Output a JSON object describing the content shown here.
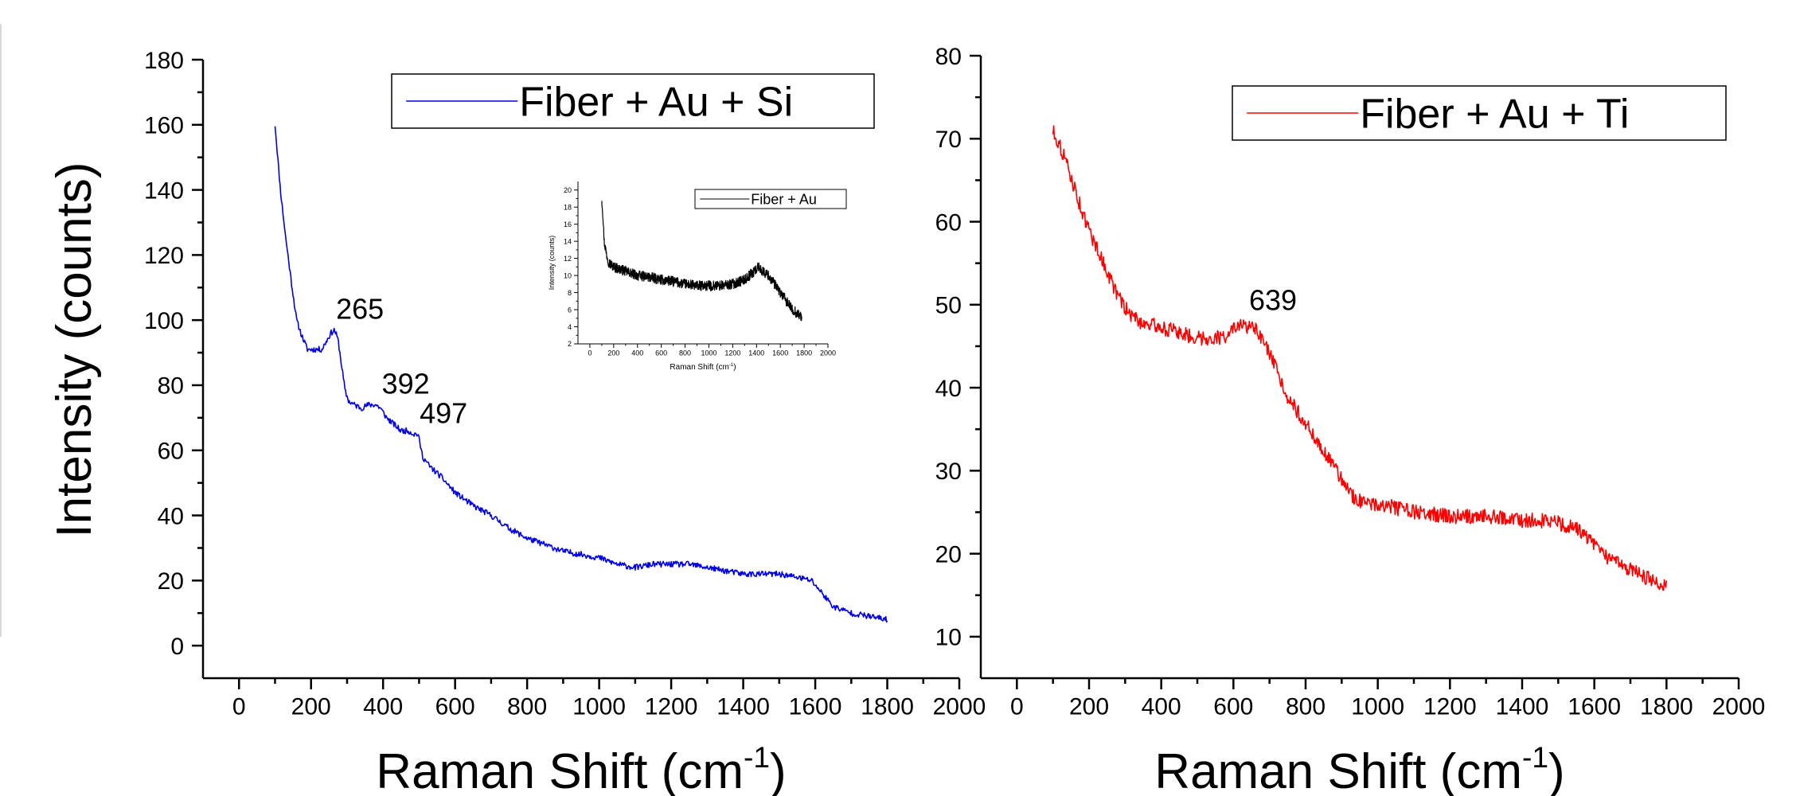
{
  "chart_data": [
    {
      "type": "line",
      "xlabel": "Raman Shift (cm",
      "xlabel_sup": "-1",
      "xlabel_end": ")",
      "ylabel": "Intensity (counts)",
      "xlim": [
        -100,
        2000
      ],
      "ylim": [
        -10,
        180
      ],
      "xticks": [
        0,
        200,
        400,
        600,
        800,
        1000,
        1200,
        1400,
        1600,
        1800,
        2000
      ],
      "yticks": [
        0,
        20,
        40,
        60,
        80,
        100,
        120,
        140,
        160,
        180
      ],
      "legend": "top-right",
      "series": [
        {
          "name": "Fiber + Au + Si",
          "color": "#0000e6",
          "points": [
            [
              100,
              160
            ],
            [
              115,
              140
            ],
            [
              130,
              125
            ],
            [
              145,
              112
            ],
            [
              160,
              100
            ],
            [
              175,
              95
            ],
            [
              190,
              91
            ],
            [
              210,
              91
            ],
            [
              230,
              91
            ],
            [
              245,
              94
            ],
            [
              255,
              96
            ],
            [
              265,
              97
            ],
            [
              275,
              94
            ],
            [
              285,
              86
            ],
            [
              295,
              78
            ],
            [
              305,
              75
            ],
            [
              320,
              74
            ],
            [
              340,
              73
            ],
            [
              360,
              74
            ],
            [
              380,
              74
            ],
            [
              392,
              73
            ],
            [
              410,
              70
            ],
            [
              430,
              68
            ],
            [
              450,
              66
            ],
            [
              470,
              66
            ],
            [
              485,
              65
            ],
            [
              497,
              65
            ],
            [
              510,
              58
            ],
            [
              530,
              55
            ],
            [
              560,
              52
            ],
            [
              600,
              47
            ],
            [
              650,
              43
            ],
            [
              700,
              40
            ],
            [
              750,
              36
            ],
            [
              800,
              33
            ],
            [
              850,
              31
            ],
            [
              900,
              29
            ],
            [
              950,
              28
            ],
            [
              1000,
              27
            ],
            [
              1050,
              25
            ],
            [
              1100,
              24
            ],
            [
              1150,
              25
            ],
            [
              1200,
              25
            ],
            [
              1250,
              25
            ],
            [
              1300,
              24
            ],
            [
              1350,
              23
            ],
            [
              1400,
              22
            ],
            [
              1450,
              22
            ],
            [
              1500,
              22
            ],
            [
              1550,
              21
            ],
            [
              1590,
              20
            ],
            [
              1620,
              16
            ],
            [
              1650,
              12
            ],
            [
              1700,
              10
            ],
            [
              1750,
              9
            ],
            [
              1800,
              8
            ]
          ],
          "noise": 0.9
        }
      ],
      "annotations": [
        {
          "label": "265",
          "x": 265,
          "y": 97
        },
        {
          "label": "392",
          "x": 392,
          "y": 74
        },
        {
          "label": "497",
          "x": 497,
          "y": 65
        }
      ],
      "inset": {
        "xlabel": "Raman Shift (cm",
        "xlabel_sup": "-1",
        "xlabel_end": ")",
        "ylabel": "Intensity (counts)",
        "xlim": [
          -100,
          2000
        ],
        "ylim": [
          2,
          21
        ],
        "xticks": [
          0,
          200,
          400,
          600,
          800,
          1000,
          1200,
          1400,
          1600,
          1800,
          2000
        ],
        "yticks": [
          2,
          4,
          6,
          8,
          10,
          12,
          14,
          16,
          18,
          20
        ],
        "series": [
          {
            "name": "Fiber + Au",
            "color": "#000000",
            "points": [
              [
                100,
                19
              ],
              [
                110,
                17
              ],
              [
                120,
                14
              ],
              [
                140,
                12.5
              ],
              [
                160,
                11.5
              ],
              [
                200,
                11
              ],
              [
                300,
                10.5
              ],
              [
                400,
                10
              ],
              [
                500,
                9.8
              ],
              [
                600,
                9.5
              ],
              [
                700,
                9.3
              ],
              [
                800,
                9
              ],
              [
                900,
                8.8
              ],
              [
                1000,
                8.8
              ],
              [
                1100,
                8.8
              ],
              [
                1200,
                9
              ],
              [
                1300,
                9.5
              ],
              [
                1380,
                10.5
              ],
              [
                1420,
                11
              ],
              [
                1450,
                10.5
              ],
              [
                1500,
                10
              ],
              [
                1550,
                9
              ],
              [
                1600,
                8
              ],
              [
                1650,
                7
              ],
              [
                1700,
                6
              ],
              [
                1750,
                5.5
              ],
              [
                1780,
                5
              ]
            ],
            "noise": 0.6
          }
        ]
      }
    },
    {
      "type": "line",
      "xlabel": "Raman Shift (cm",
      "xlabel_sup": "-1",
      "xlabel_end": ")",
      "xlim": [
        -100,
        2000
      ],
      "ylim": [
        5,
        80
      ],
      "xticks": [
        0,
        200,
        400,
        600,
        800,
        1000,
        1200,
        1400,
        1600,
        1800,
        2000
      ],
      "yticks": [
        10,
        20,
        30,
        40,
        50,
        60,
        70,
        80
      ],
      "legend": "top-right",
      "series": [
        {
          "name": "Fiber + Au + Ti",
          "color": "#ff0000",
          "points": [
            [
              100,
              71
            ],
            [
              130,
              68
            ],
            [
              160,
              64
            ],
            [
              190,
              60
            ],
            [
              220,
              57
            ],
            [
              250,
              54
            ],
            [
              280,
              51
            ],
            [
              310,
              49
            ],
            [
              340,
              48
            ],
            [
              380,
              47.5
            ],
            [
              420,
              47
            ],
            [
              460,
              46.5
            ],
            [
              500,
              46
            ],
            [
              540,
              46
            ],
            [
              570,
              46
            ],
            [
              600,
              47
            ],
            [
              630,
              47.5
            ],
            [
              660,
              47
            ],
            [
              690,
              45
            ],
            [
              720,
              42
            ],
            [
              750,
              39
            ],
            [
              780,
              37
            ],
            [
              810,
              35
            ],
            [
              840,
              33
            ],
            [
              870,
              31
            ],
            [
              900,
              29
            ],
            [
              930,
              27
            ],
            [
              960,
              26
            ],
            [
              1000,
              26
            ],
            [
              1050,
              25.5
            ],
            [
              1100,
              25
            ],
            [
              1200,
              24.5
            ],
            [
              1300,
              24.5
            ],
            [
              1400,
              24
            ],
            [
              1480,
              24
            ],
            [
              1550,
              23
            ],
            [
              1580,
              22
            ],
            [
              1620,
              20
            ],
            [
              1660,
              19
            ],
            [
              1700,
              18
            ],
            [
              1750,
              17
            ],
            [
              1800,
              16
            ]
          ],
          "noise": 0.9
        }
      ],
      "annotations": [
        {
          "label": "639",
          "x": 639,
          "y": 48
        }
      ]
    }
  ]
}
